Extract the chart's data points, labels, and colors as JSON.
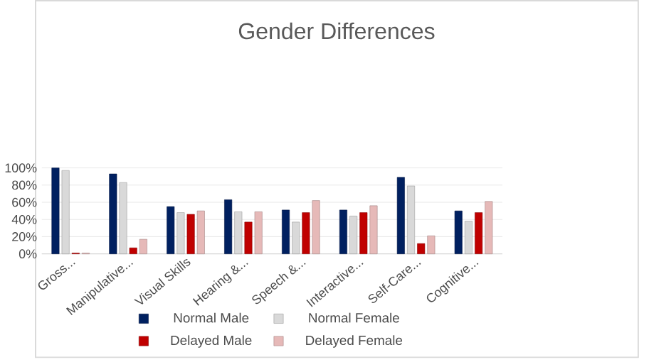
{
  "chart_data": {
    "type": "bar",
    "title": "Gender Differences",
    "categories": [
      "Gross...",
      "Manipulative...",
      "Visual Skills",
      "Hearing &...",
      "Speech &...",
      "Interactive...",
      "Self-Care...",
      "Cognitive..."
    ],
    "series": [
      {
        "name": "Normal Male",
        "color": "#002060",
        "values": [
          100,
          93,
          55,
          63,
          51,
          51,
          89,
          50
        ]
      },
      {
        "name": "Normal Female",
        "color": "#d9d9d9",
        "values": [
          97,
          83,
          48,
          49,
          37,
          44,
          79,
          38
        ]
      },
      {
        "name": "Delayed Male",
        "color": "#c00000",
        "values": [
          1,
          7,
          46,
          37,
          48,
          48,
          12,
          48
        ]
      },
      {
        "name": "Delayed Female",
        "color": "#e6b9b8",
        "values": [
          1,
          17,
          50,
          49,
          62,
          56,
          21,
          61
        ]
      }
    ],
    "ylim": [
      0,
      100
    ],
    "yticks": [
      {
        "value": 0,
        "label": "0%"
      },
      {
        "value": 20,
        "label": "20%"
      },
      {
        "value": 40,
        "label": "40%"
      },
      {
        "value": 60,
        "label": "60%"
      },
      {
        "value": 80,
        "label": "80%"
      },
      {
        "value": 100,
        "label": "100%"
      }
    ],
    "grid": "y",
    "legend": "bottom"
  }
}
